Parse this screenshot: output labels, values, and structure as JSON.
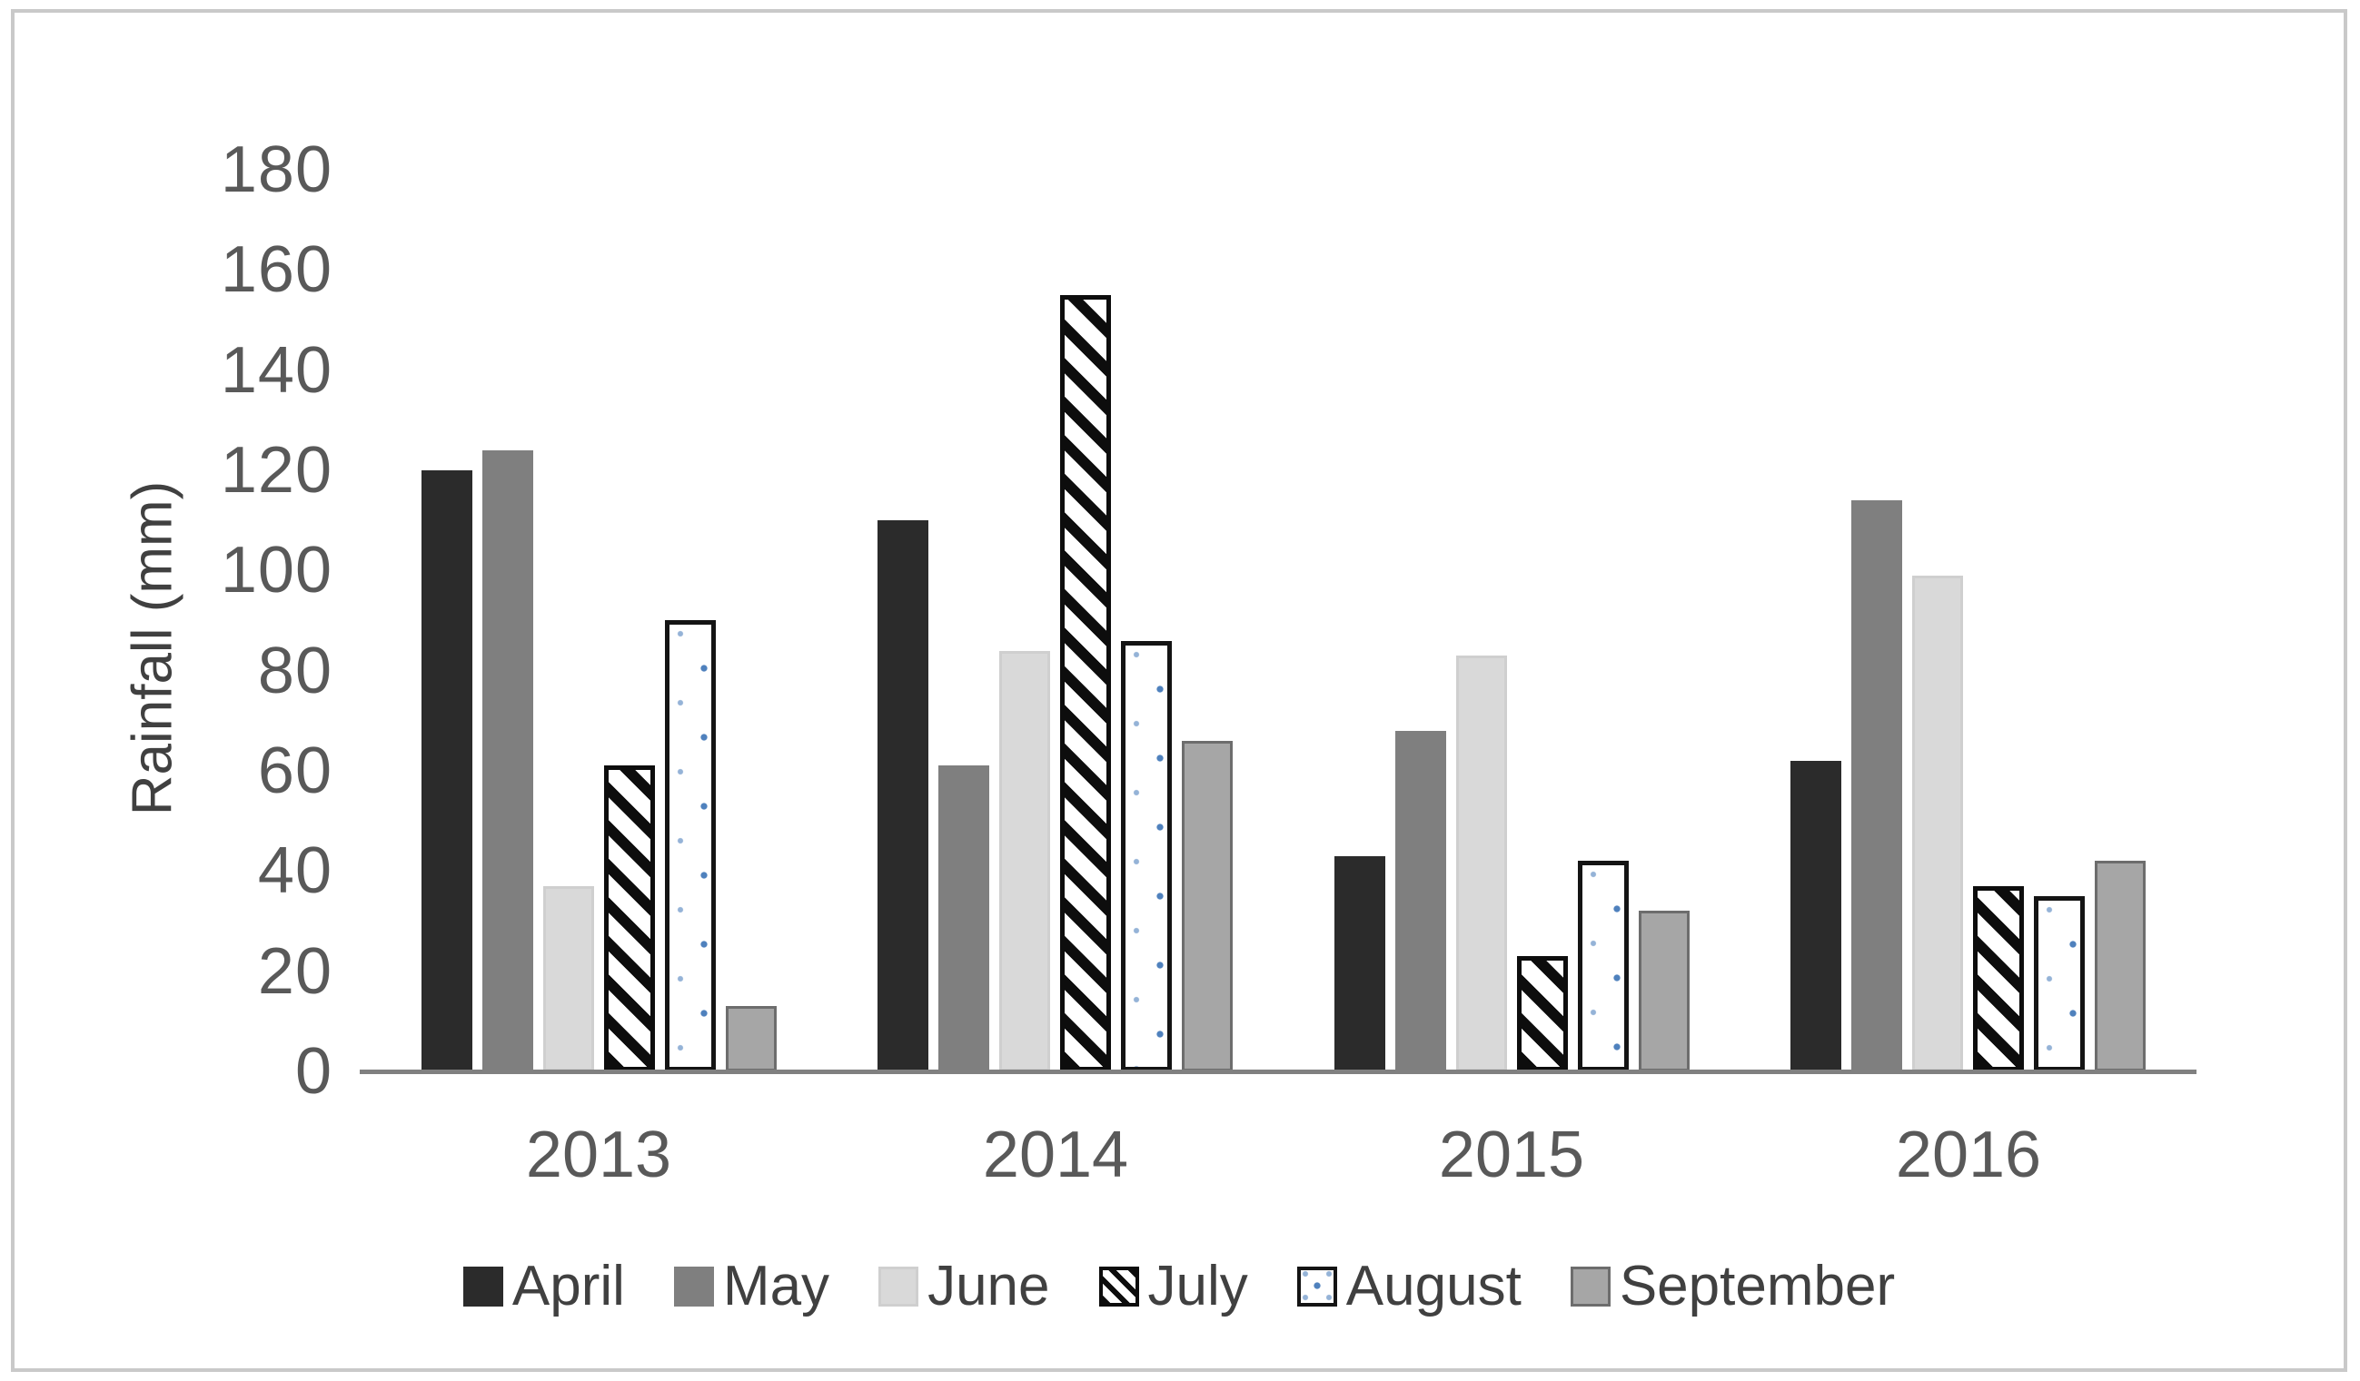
{
  "figure": {
    "background": "#ffffff",
    "frame_border_color": "#c9c9c9",
    "axis_line_color": "#808080",
    "tick_label_color": "#595959",
    "text_color": "#404040"
  },
  "chart_data": {
    "type": "bar",
    "title": "",
    "xlabel": "",
    "ylabel": "Rainfall (mm)",
    "ylim": [
      0,
      180
    ],
    "yticks": [
      0,
      20,
      40,
      60,
      80,
      100,
      120,
      140,
      160,
      180
    ],
    "grid": false,
    "legend_position": "bottom",
    "categories": [
      "2013",
      "2014",
      "2015",
      "2016"
    ],
    "series": [
      {
        "name": "April",
        "pattern": "solid",
        "color": "#2b2b2b",
        "values": [
          120,
          110,
          43,
          62
        ]
      },
      {
        "name": "May",
        "pattern": "solid",
        "color": "#7f7f7f",
        "values": [
          124,
          61,
          68,
          114
        ]
      },
      {
        "name": "June",
        "pattern": "solid",
        "color": "#d9d9d9",
        "border_color": "#cfcfcf",
        "values": [
          37,
          84,
          83,
          99
        ]
      },
      {
        "name": "July",
        "pattern": "diagonal-hatch",
        "color": "#0d0d0d",
        "values": [
          61,
          155,
          23,
          37
        ]
      },
      {
        "name": "August",
        "pattern": "blue-dots",
        "color": "#4f81bd",
        "border_color": "#141414",
        "values": [
          90,
          86,
          42,
          35
        ]
      },
      {
        "name": "September",
        "pattern": "solid",
        "color": "#a6a6a6",
        "border_color": "#6d6d6d",
        "values": [
          13,
          66,
          32,
          42
        ]
      }
    ]
  }
}
